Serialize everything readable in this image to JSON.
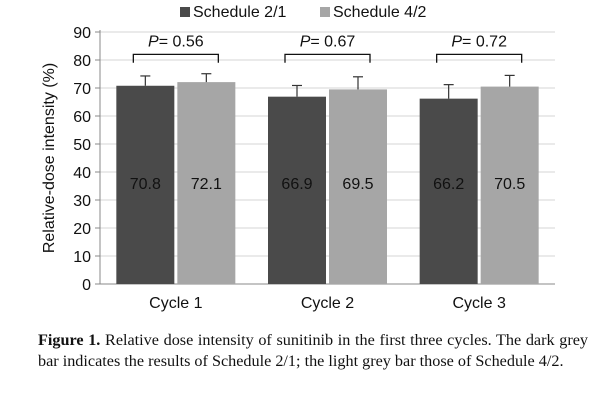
{
  "chart_data": {
    "type": "bar",
    "title": "",
    "xlabel": "",
    "ylabel": "Relative-dose intensity (%)",
    "ylim": [
      0,
      90
    ],
    "yticks": [
      0,
      10,
      20,
      30,
      40,
      50,
      60,
      70,
      80,
      90
    ],
    "grid": true,
    "legend_position": "top",
    "categories": [
      "Cycle 1",
      "Cycle 2",
      "Cycle 3"
    ],
    "series": [
      {
        "name": "Schedule 2/1",
        "values": [
          70.8,
          66.9,
          66.2
        ],
        "error": [
          3.5,
          4.0,
          5.0
        ],
        "color": "#4a4a4a"
      },
      {
        "name": "Schedule 4/2",
        "values": [
          72.1,
          69.5,
          70.5
        ],
        "error": [
          3.0,
          4.5,
          4.0
        ],
        "color": "#a6a6a6"
      }
    ],
    "data_labels": [
      [
        "70.8",
        "66.9",
        "66.2"
      ],
      [
        "72.1",
        "69.5",
        "70.5"
      ]
    ],
    "annotations": [
      {
        "italic": "P",
        "text": "= 0.56"
      },
      {
        "italic": "P",
        "text": "= 0.67"
      },
      {
        "italic": "P",
        "text": "= 0.72"
      }
    ]
  },
  "caption": {
    "label": "Figure 1.",
    "text": "Relative dose intensity of sunitinib in the first three cycles. The dark grey bar indicates the results of Schedule 2/1; the light grey bar those of Schedule 4/2."
  }
}
